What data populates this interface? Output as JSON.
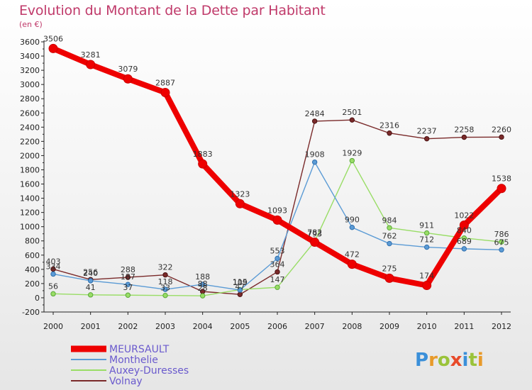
{
  "header": {
    "title": "Evolution du Montant de la Dette par Habitant",
    "subtitle": "(en €)"
  },
  "brand": {
    "logo_text": "Proxiti"
  },
  "chart_data": {
    "type": "line",
    "title": "Evolution du Montant de la Dette par Habitant",
    "subtitle": "(en €)",
    "xlabel": "",
    "ylabel": "",
    "x": [
      "2000",
      "2001",
      "2002",
      "2003",
      "2004",
      "2005",
      "2006",
      "2007",
      "2008",
      "2009",
      "2010",
      "2011",
      "2012"
    ],
    "ylim": [
      -200,
      3600
    ],
    "yticks": [
      -200,
      0,
      200,
      400,
      600,
      800,
      1000,
      1200,
      1400,
      1600,
      1800,
      2000,
      2200,
      2400,
      2600,
      2800,
      3000,
      3200,
      3400,
      3600
    ],
    "grid": false,
    "legend": "bottom-left",
    "series": [
      {
        "name": "MEURSAULT",
        "color": "#ee0000",
        "values": [
          3506,
          3281,
          3079,
          2887,
          1883,
          1323,
          1093,
          782,
          472,
          275,
          174,
          1022,
          1538
        ],
        "labels": [
          "3506",
          "3281",
          "3079",
          "2887",
          "1883",
          "1323",
          "1093",
          "782",
          "472",
          "275",
          "174",
          "1022",
          "1538"
        ]
      },
      {
        "name": "Monthelie",
        "color": "#5b9bd5",
        "values": [
          334,
          240,
          187,
          118,
          188,
          109,
          553,
          1908,
          990,
          762,
          712,
          689,
          675
        ],
        "labels": [
          "334",
          "240",
          "187",
          "118",
          "188",
          "109",
          "553",
          "1908",
          "990",
          "762",
          "712",
          "689",
          "675"
        ]
      },
      {
        "name": "Auxey-Duresses",
        "color": "#99dd66",
        "values": [
          56,
          41,
          37,
          33,
          28,
          115,
          147,
          793,
          1929,
          984,
          911,
          840,
          786
        ],
        "labels": [
          "56",
          "41",
          "37",
          "33",
          "28",
          "115",
          "147",
          "793",
          "1929",
          "984",
          "911",
          "840",
          "786"
        ]
      },
      {
        "name": "Volnay",
        "color": "#7a2a2a",
        "values": [
          403,
          256,
          288,
          322,
          88,
          47,
          364,
          2484,
          2501,
          2316,
          2237,
          2258,
          2260
        ],
        "labels": [
          "403",
          "256",
          "288",
          "322",
          "88",
          "47",
          "364",
          "2484",
          "2501",
          "2316",
          "2237",
          "2258",
          "2260"
        ]
      }
    ]
  }
}
